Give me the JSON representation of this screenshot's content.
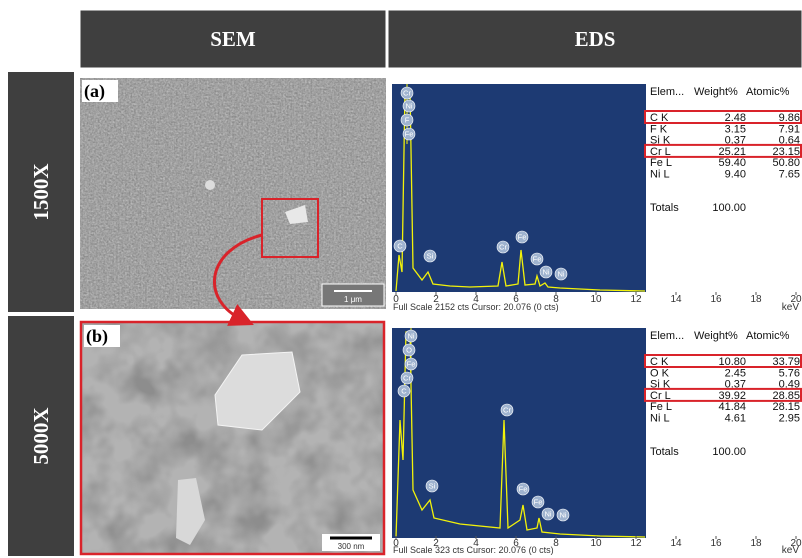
{
  "header": {
    "sem": "SEM",
    "eds": "EDS"
  },
  "rows": [
    {
      "magnification": "1500X",
      "panel_label": "(a)",
      "scale_bar": "1 μm",
      "eds": {
        "peaks_top": [
          "Cr",
          "Ni",
          "F",
          "Fe"
        ],
        "peaks": [
          "C",
          "Si",
          "Cr",
          "Fe",
          "Fe",
          "Ni",
          "Ni"
        ],
        "table_header": [
          "Elem...",
          "Weight%",
          "Atomic%"
        ],
        "table": [
          [
            "C K",
            "2.48",
            "9.86"
          ],
          [
            "F K",
            "3.15",
            "7.91"
          ],
          [
            "Si K",
            "0.37",
            "0.64"
          ],
          [
            "Cr L",
            "25.21",
            "23.15"
          ],
          [
            "Fe L",
            "59.40",
            "50.80"
          ],
          [
            "Ni L",
            "9.40",
            "7.65"
          ]
        ],
        "highlighted_rows": [
          0,
          3
        ],
        "totals": [
          "Totals",
          "100.00"
        ],
        "axis_ticks": [
          "0",
          "2",
          "4",
          "6",
          "8",
          "10",
          "12",
          "14",
          "16",
          "18",
          "20"
        ],
        "axis_unit": "keV",
        "footer": "Full Scale 2152 cts Cursor: 20.076  (0 cts)"
      }
    },
    {
      "magnification": "5000X",
      "panel_label": "(b)",
      "scale_bar": "300 nm",
      "eds": {
        "peaks_top": [
          "Ni",
          "O",
          "Fe",
          "Cr",
          "C"
        ],
        "peaks": [
          "Si",
          "Cr",
          "Fe",
          "Fe",
          "Ni",
          "Ni"
        ],
        "table_header": [
          "Elem...",
          "Weight%",
          "Atomic%"
        ],
        "table": [
          [
            "C K",
            "10.80",
            "33.79"
          ],
          [
            "O K",
            "2.45",
            "5.76"
          ],
          [
            "Si K",
            "0.37",
            "0.49"
          ],
          [
            "Cr L",
            "39.92",
            "28.85"
          ],
          [
            "Fe L",
            "41.84",
            "28.15"
          ],
          [
            "Ni L",
            "4.61",
            "2.95"
          ]
        ],
        "highlighted_rows": [
          0,
          3
        ],
        "totals": [
          "Totals",
          "100.00"
        ],
        "axis_ticks": [
          "0",
          "2",
          "4",
          "6",
          "8",
          "10",
          "12",
          "14",
          "16",
          "18",
          "20"
        ],
        "axis_unit": "keV",
        "footer": "Full Scale 323 cts Cursor: 20.076  (0 cts)"
      }
    }
  ]
}
